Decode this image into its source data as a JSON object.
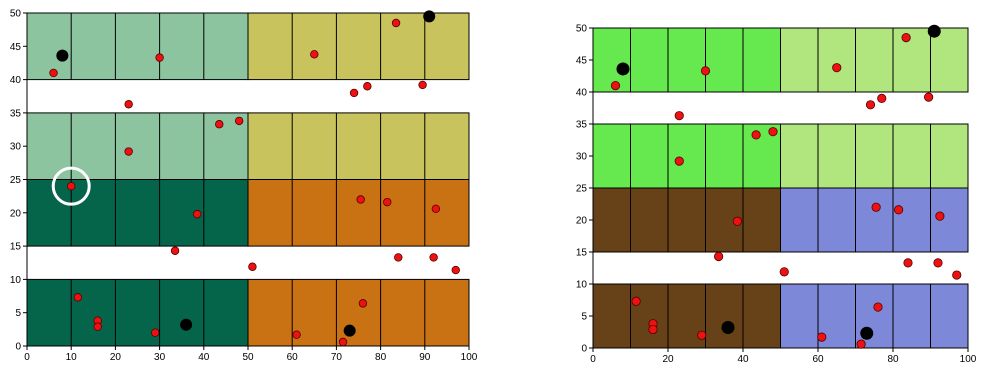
{
  "chart_data": [
    {
      "type": "scatter",
      "title": "",
      "xlabel": "",
      "ylabel": "",
      "xlim": [
        0,
        100
      ],
      "ylim": [
        0,
        50
      ],
      "x_ticks": [
        0,
        10,
        20,
        30,
        40,
        50,
        60,
        70,
        80,
        90,
        100
      ],
      "y_ticks": [
        0,
        5,
        10,
        15,
        20,
        25,
        30,
        35,
        40,
        45,
        50
      ],
      "grid": false,
      "legend": "none",
      "bands": [
        {
          "y": [
            40,
            50
          ],
          "x": [
            0,
            50
          ],
          "color": "#8cc49f"
        },
        {
          "y": [
            40,
            50
          ],
          "x": [
            50,
            100
          ],
          "color": "#c9c35e"
        },
        {
          "y": [
            25,
            35
          ],
          "x": [
            0,
            50
          ],
          "color": "#8cc49f"
        },
        {
          "y": [
            25,
            35
          ],
          "x": [
            50,
            100
          ],
          "color": "#c9c35e"
        },
        {
          "y": [
            15,
            25
          ],
          "x": [
            0,
            50
          ],
          "color": "#05654a"
        },
        {
          "y": [
            15,
            25
          ],
          "x": [
            50,
            100
          ],
          "color": "#c87214"
        },
        {
          "y": [
            0,
            10
          ],
          "x": [
            0,
            50
          ],
          "color": "#05654a"
        },
        {
          "y": [
            0,
            10
          ],
          "x": [
            50,
            100
          ],
          "color": "#c87214"
        }
      ],
      "cell_dividers_x": [
        10,
        20,
        30,
        40,
        60,
        70,
        80,
        90
      ],
      "red_points": [
        {
          "x": 6,
          "y": 41
        },
        {
          "x": 30,
          "y": 43.3
        },
        {
          "x": 65,
          "y": 43.8
        },
        {
          "x": 83.5,
          "y": 48.5
        },
        {
          "x": 23,
          "y": 36.3
        },
        {
          "x": 74,
          "y": 38
        },
        {
          "x": 77,
          "y": 39
        },
        {
          "x": 89.5,
          "y": 39.2
        },
        {
          "x": 43.5,
          "y": 33.3
        },
        {
          "x": 48,
          "y": 33.8
        },
        {
          "x": 23,
          "y": 29.2
        },
        {
          "x": 10,
          "y": 24
        },
        {
          "x": 38.5,
          "y": 19.8
        },
        {
          "x": 75.5,
          "y": 22
        },
        {
          "x": 81.5,
          "y": 21.6
        },
        {
          "x": 92.5,
          "y": 20.6
        },
        {
          "x": 33.5,
          "y": 14.3
        },
        {
          "x": 51,
          "y": 11.9
        },
        {
          "x": 84,
          "y": 13.3
        },
        {
          "x": 92,
          "y": 13.3
        },
        {
          "x": 97,
          "y": 11.4
        },
        {
          "x": 11.5,
          "y": 7.3
        },
        {
          "x": 16,
          "y": 3.8
        },
        {
          "x": 16,
          "y": 2.9
        },
        {
          "x": 29,
          "y": 2
        },
        {
          "x": 61,
          "y": 1.7
        },
        {
          "x": 76,
          "y": 6.4
        },
        {
          "x": 71.5,
          "y": 0.6
        }
      ],
      "black_points": [
        {
          "x": 8,
          "y": 43.6
        },
        {
          "x": 91,
          "y": 49.5
        },
        {
          "x": 36,
          "y": 3.2
        },
        {
          "x": 73,
          "y": 2.3
        }
      ],
      "highlight_circle": {
        "x": 10,
        "y": 24,
        "color": "#ffffff"
      }
    },
    {
      "type": "scatter",
      "title": "",
      "xlabel": "",
      "ylabel": "",
      "xlim": [
        0,
        100
      ],
      "ylim": [
        0,
        50
      ],
      "x_ticks": [
        0,
        20,
        40,
        60,
        80,
        100
      ],
      "y_ticks": [
        0,
        5,
        10,
        15,
        20,
        25,
        30,
        35,
        40,
        45,
        50
      ],
      "grid": false,
      "legend": "none",
      "bands": [
        {
          "y": [
            40,
            50
          ],
          "x": [
            0,
            50
          ],
          "color": "#66e84f"
        },
        {
          "y": [
            40,
            50
          ],
          "x": [
            50,
            100
          ],
          "color": "#b0e67d"
        },
        {
          "y": [
            25,
            35
          ],
          "x": [
            0,
            50
          ],
          "color": "#66e84f"
        },
        {
          "y": [
            25,
            35
          ],
          "x": [
            50,
            100
          ],
          "color": "#b0e67d"
        },
        {
          "y": [
            15,
            25
          ],
          "x": [
            0,
            50
          ],
          "color": "#674218"
        },
        {
          "y": [
            15,
            25
          ],
          "x": [
            50,
            100
          ],
          "color": "#7e88d8"
        },
        {
          "y": [
            0,
            10
          ],
          "x": [
            0,
            50
          ],
          "color": "#674218"
        },
        {
          "y": [
            0,
            10
          ],
          "x": [
            50,
            100
          ],
          "color": "#7e88d8"
        }
      ],
      "cell_dividers_x": [
        10,
        20,
        30,
        40,
        60,
        70,
        80,
        90
      ],
      "red_points": [
        {
          "x": 6,
          "y": 41
        },
        {
          "x": 30,
          "y": 43.3
        },
        {
          "x": 65,
          "y": 43.8
        },
        {
          "x": 83.5,
          "y": 48.5
        },
        {
          "x": 23,
          "y": 36.3
        },
        {
          "x": 74,
          "y": 38
        },
        {
          "x": 77,
          "y": 39
        },
        {
          "x": 89.5,
          "y": 39.2
        },
        {
          "x": 43.5,
          "y": 33.3
        },
        {
          "x": 48,
          "y": 33.8
        },
        {
          "x": 23,
          "y": 29.2
        },
        {
          "x": 38.5,
          "y": 19.8
        },
        {
          "x": 75.5,
          "y": 22
        },
        {
          "x": 81.5,
          "y": 21.6
        },
        {
          "x": 92.5,
          "y": 20.6
        },
        {
          "x": 33.5,
          "y": 14.3
        },
        {
          "x": 51,
          "y": 11.9
        },
        {
          "x": 84,
          "y": 13.3
        },
        {
          "x": 92,
          "y": 13.3
        },
        {
          "x": 97,
          "y": 11.4
        },
        {
          "x": 11.5,
          "y": 7.3
        },
        {
          "x": 16,
          "y": 3.8
        },
        {
          "x": 16,
          "y": 2.9
        },
        {
          "x": 29,
          "y": 2
        },
        {
          "x": 61,
          "y": 1.7
        },
        {
          "x": 76,
          "y": 6.4
        },
        {
          "x": 71.5,
          "y": 0.6
        }
      ],
      "black_points": [
        {
          "x": 8,
          "y": 43.6
        },
        {
          "x": 91,
          "y": 49.5
        },
        {
          "x": 36,
          "y": 3.2
        },
        {
          "x": 73,
          "y": 2.3
        }
      ]
    }
  ]
}
